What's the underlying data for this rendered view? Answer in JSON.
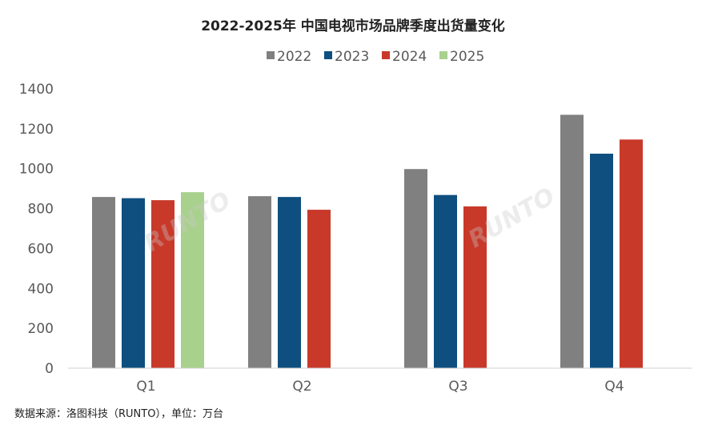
{
  "chart_data": {
    "type": "bar",
    "title": "2022-2025年 中国电视市场品牌季度出货量变化",
    "categories": [
      "Q1",
      "Q2",
      "Q3",
      "Q4"
    ],
    "series": [
      {
        "name": "2022",
        "color": "#808080",
        "values": [
          858,
          862,
          998,
          1270
        ]
      },
      {
        "name": "2023",
        "color": "#0e4f7f",
        "values": [
          852,
          858,
          868,
          1075
        ]
      },
      {
        "name": "2024",
        "color": "#c8392a",
        "values": [
          842,
          794,
          811,
          1146
        ]
      },
      {
        "name": "2025",
        "color": "#a9d18e",
        "values": [
          882,
          null,
          null,
          null
        ]
      }
    ],
    "ylim": [
      0,
      1400
    ],
    "yticks": [
      0,
      200,
      400,
      600,
      800,
      1000,
      1200,
      1400
    ],
    "grid": false,
    "legend": "top",
    "xlabel": "",
    "ylabel": ""
  },
  "source_note": "数据来源：洛图科技（RUNTO），单位：万台",
  "watermark": "RUNTO 洛图科技"
}
